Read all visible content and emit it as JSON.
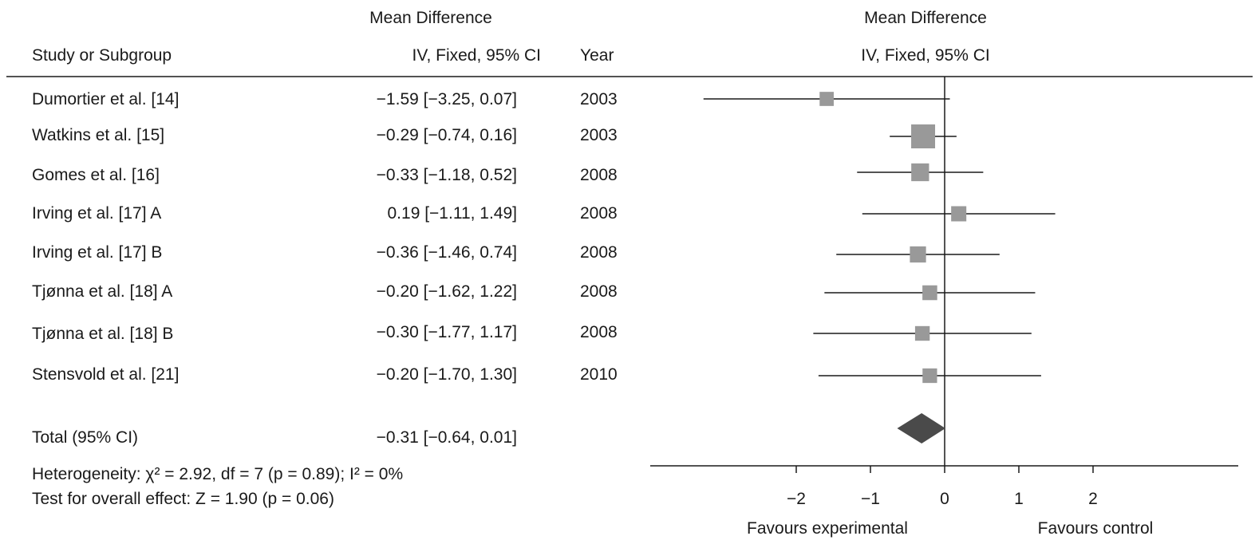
{
  "headers": {
    "left_group": "Mean Difference",
    "study_col": "Study or Subgroup",
    "md_col": "IV, Fixed, 95% CI",
    "year_col": "Year",
    "plot_group": "Mean Difference",
    "plot_sub": "IV, Fixed, 95% CI"
  },
  "studies": [
    {
      "name": "Dumortier et al. [14]",
      "ci_text": "−1.59 [−3.25, 0.07]",
      "year": "2003"
    },
    {
      "name": "Watkins et al. [15]",
      "ci_text": "−0.29 [−0.74, 0.16]",
      "year": "2003"
    },
    {
      "name": "Gomes et al. [16]",
      "ci_text": "−0.33 [−1.18, 0.52]",
      "year": "2008"
    },
    {
      "name": "Irving et al. [17] A",
      "ci_text": "0.19 [−1.11, 1.49]",
      "year": "2008"
    },
    {
      "name": "Irving et al. [17] B",
      "ci_text": "−0.36 [−1.46, 0.74]",
      "year": "2008"
    },
    {
      "name": "Tjønna et al. [18] A",
      "ci_text": "−0.20 [−1.62, 1.22]",
      "year": "2008"
    },
    {
      "name": "Tjønna et al. [18] B",
      "ci_text": "−0.30 [−1.77, 1.17]",
      "year": "2008"
    },
    {
      "name": "Stensvold et al. [21]",
      "ci_text": "−0.20 [−1.70, 1.30]",
      "year": "2010"
    }
  ],
  "total": {
    "label": "Total (95% CI)",
    "ci_text": "−0.31 [−0.64, 0.01]"
  },
  "heterogeneity": "Heterogeneity: χ² = 2.92, df = 7 (p = 0.89); I² = 0%",
  "overall_effect": "Test for overall effect: Z = 1.90 (p = 0.06)",
  "favours_left": "Favours experimental",
  "favours_right": "Favours control",
  "chart_data": {
    "type": "scatter",
    "subtype": "forest",
    "xlim": [
      -4,
      4
    ],
    "xticks": [
      -2,
      -1,
      0,
      1,
      2
    ],
    "xtick_labels": [
      "−2",
      "−1",
      "0",
      "1",
      "2"
    ],
    "series": [
      {
        "estimates": [
          -1.59,
          -0.29,
          -0.33,
          0.19,
          -0.36,
          -0.2,
          -0.3,
          -0.2
        ],
        "lower": [
          -3.25,
          -0.74,
          -1.18,
          -1.11,
          -1.46,
          -1.62,
          -1.77,
          -1.7
        ],
        "upper": [
          0.07,
          0.16,
          0.52,
          1.49,
          0.74,
          1.22,
          1.17,
          1.3
        ],
        "relative_weight": [
          0.036,
          0.47,
          0.14,
          0.059,
          0.085,
          0.05,
          0.047,
          0.045
        ]
      }
    ],
    "pooled": {
      "estimate": -0.31,
      "lower": -0.64,
      "upper": 0.01
    },
    "colors": {
      "marker": "#999999",
      "diamond": "#4a4a4a",
      "line": "#1a1a1a"
    }
  }
}
